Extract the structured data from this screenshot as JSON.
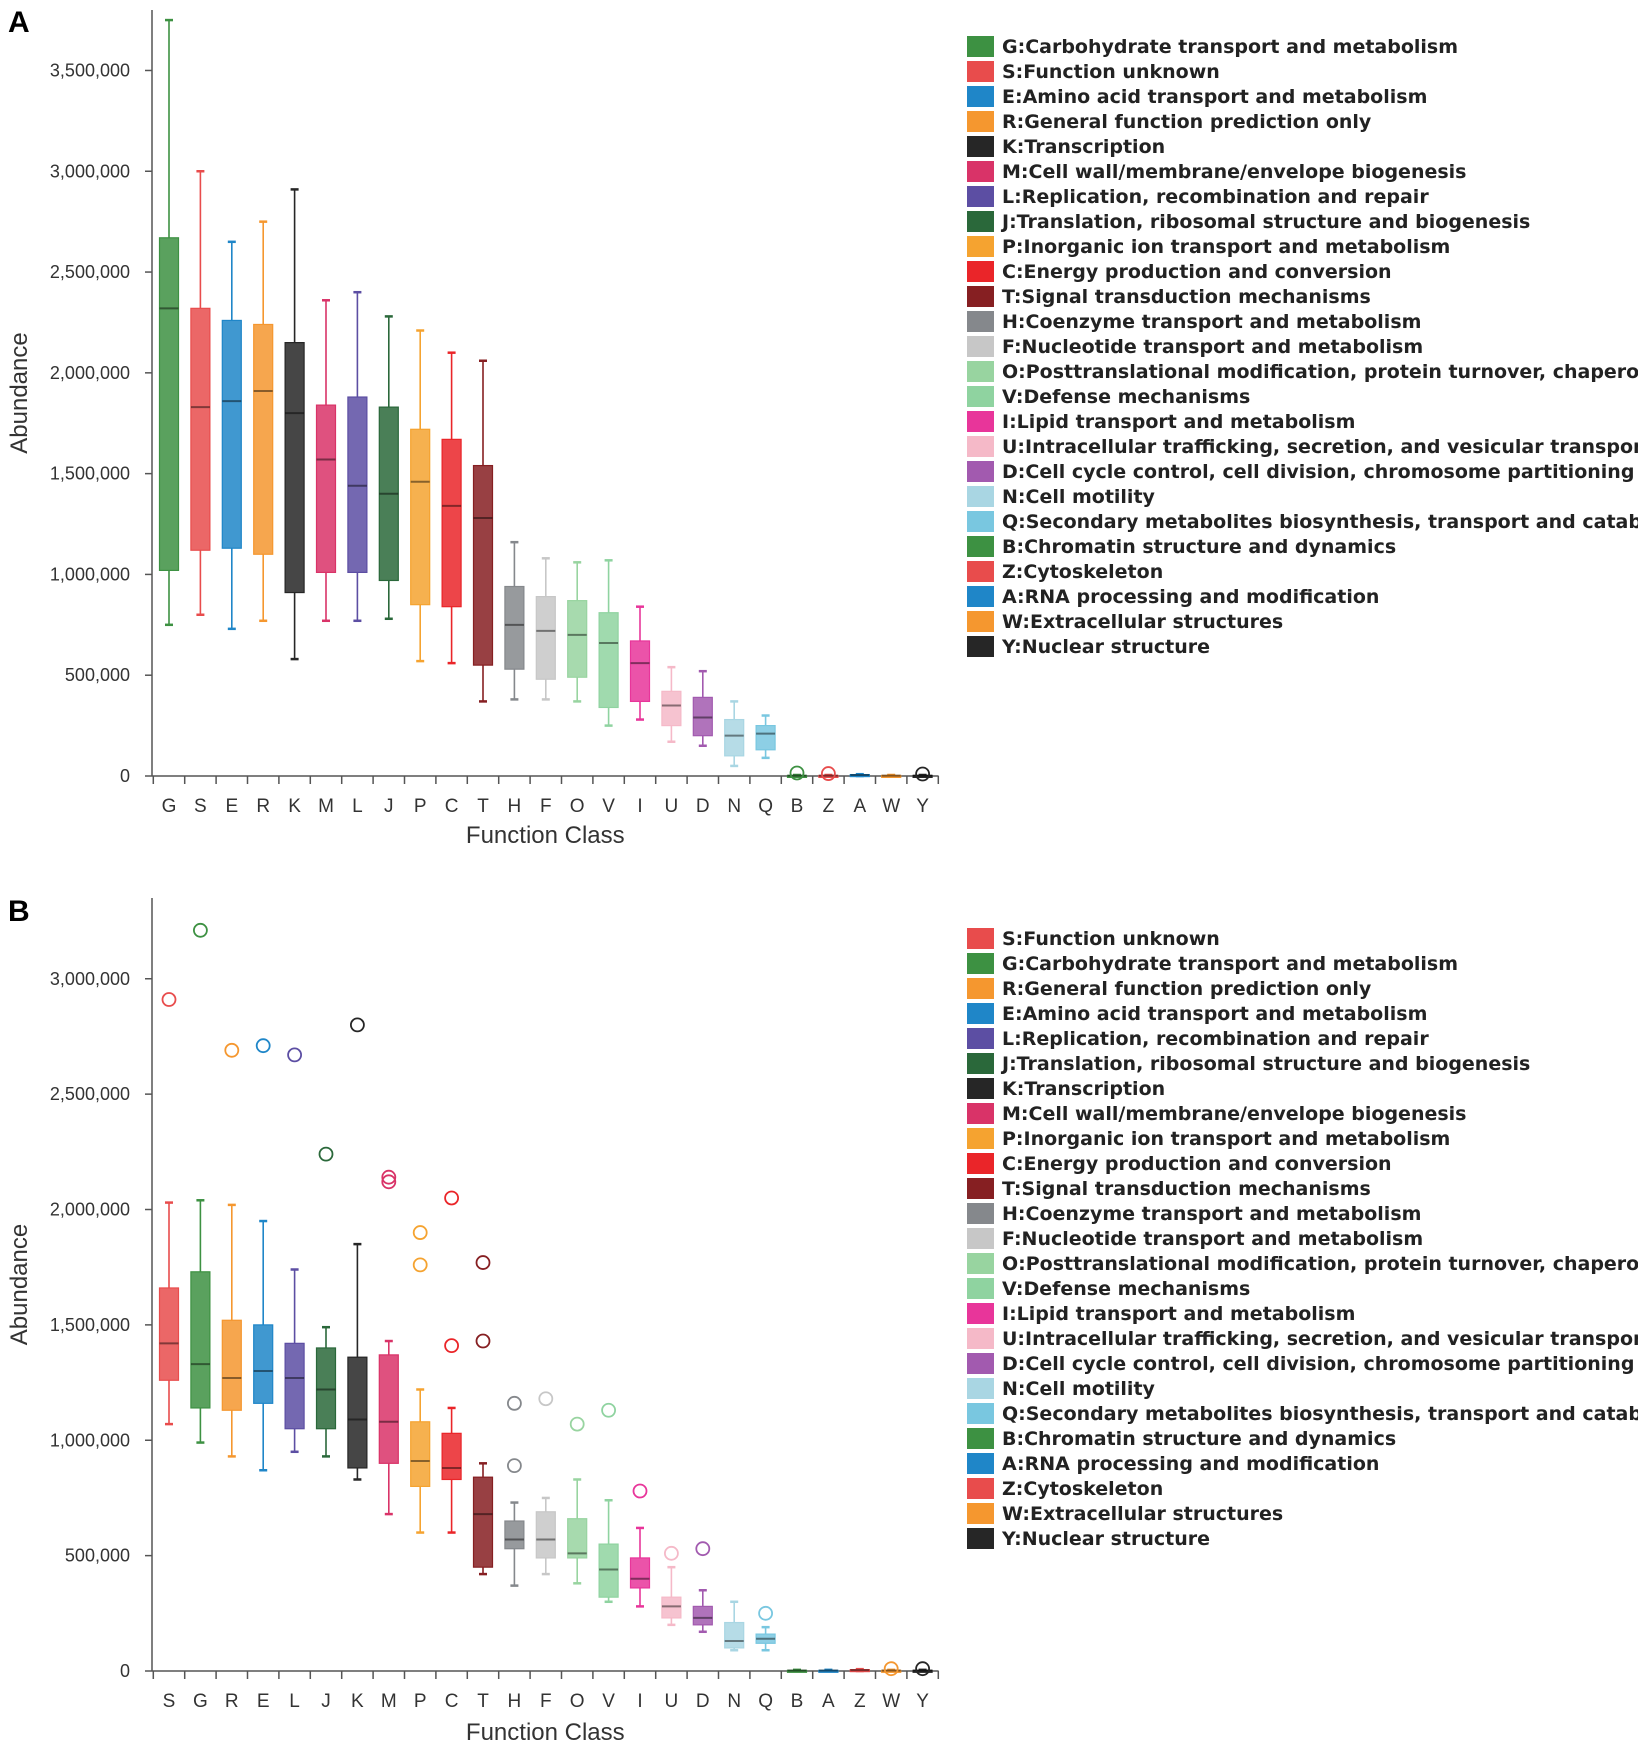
{
  "colors": {
    "G": "#3d9142",
    "S": "#e84c4c",
    "E": "#1f86c8",
    "R": "#f5972f",
    "K": "#262626",
    "M": "#d93368",
    "L": "#5c4ea3",
    "J": "#2a683a",
    "P": "#f5a330",
    "C": "#ea2529",
    "T": "#861f22",
    "H": "#85888c",
    "F": "#c7c7c7",
    "O": "#98d4a0",
    "V": "#8fd3a0",
    "I": "#e8359a",
    "U": "#f5b9c8",
    "D": "#a25aaf",
    "N": "#a9d6e3",
    "Q": "#79c7e0",
    "B": "#3d9142",
    "Z": "#e84c4c",
    "A": "#1f86c8",
    "W": "#f5972f",
    "Y": "#262626"
  },
  "chart_data": [
    {
      "panel": "A",
      "type": "box",
      "xlabel": "Function Class",
      "ylabel": "Abundance",
      "ylim": [
        0,
        3800000
      ],
      "yticks": [
        {
          "v": 0,
          "label": "0"
        },
        {
          "v": 500000,
          "label": "500,000"
        },
        {
          "v": 1000000,
          "label": "1,000,000"
        },
        {
          "v": 1500000,
          "label": "1,500,000"
        },
        {
          "v": 2000000,
          "label": "2,000,000"
        },
        {
          "v": 2500000,
          "label": "2,500,000"
        },
        {
          "v": 3000000,
          "label": "3,000,000"
        },
        {
          "v": 3500000,
          "label": "3,500,000"
        }
      ],
      "categories": [
        "G",
        "S",
        "E",
        "R",
        "K",
        "M",
        "L",
        "J",
        "P",
        "C",
        "T",
        "H",
        "F",
        "O",
        "V",
        "I",
        "U",
        "D",
        "N",
        "Q",
        "B",
        "Z",
        "A",
        "W",
        "Y"
      ],
      "boxes": [
        {
          "c": "G",
          "min": 750000,
          "q1": 1020000,
          "med": 2320000,
          "q3": 2670000,
          "max": 3750000
        },
        {
          "c": "S",
          "min": 800000,
          "q1": 1120000,
          "med": 1830000,
          "q3": 2320000,
          "max": 3000000
        },
        {
          "c": "E",
          "min": 730000,
          "q1": 1130000,
          "med": 1860000,
          "q3": 2260000,
          "max": 2650000
        },
        {
          "c": "R",
          "min": 770000,
          "q1": 1100000,
          "med": 1910000,
          "q3": 2240000,
          "max": 2750000
        },
        {
          "c": "K",
          "min": 580000,
          "q1": 910000,
          "med": 1800000,
          "q3": 2150000,
          "max": 2910000
        },
        {
          "c": "M",
          "min": 770000,
          "q1": 1010000,
          "med": 1570000,
          "q3": 1840000,
          "max": 2360000
        },
        {
          "c": "L",
          "min": 770000,
          "q1": 1010000,
          "med": 1440000,
          "q3": 1880000,
          "max": 2400000
        },
        {
          "c": "J",
          "min": 780000,
          "q1": 970000,
          "med": 1400000,
          "q3": 1830000,
          "max": 2280000
        },
        {
          "c": "P",
          "min": 570000,
          "q1": 850000,
          "med": 1460000,
          "q3": 1720000,
          "max": 2210000
        },
        {
          "c": "C",
          "min": 560000,
          "q1": 840000,
          "med": 1340000,
          "q3": 1670000,
          "max": 2100000
        },
        {
          "c": "T",
          "min": 370000,
          "q1": 550000,
          "med": 1280000,
          "q3": 1540000,
          "max": 2060000
        },
        {
          "c": "H",
          "min": 380000,
          "q1": 530000,
          "med": 750000,
          "q3": 940000,
          "max": 1160000
        },
        {
          "c": "F",
          "min": 380000,
          "q1": 480000,
          "med": 720000,
          "q3": 890000,
          "max": 1080000
        },
        {
          "c": "O",
          "min": 370000,
          "q1": 490000,
          "med": 700000,
          "q3": 870000,
          "max": 1060000
        },
        {
          "c": "V",
          "min": 250000,
          "q1": 340000,
          "med": 660000,
          "q3": 810000,
          "max": 1070000
        },
        {
          "c": "I",
          "min": 280000,
          "q1": 370000,
          "med": 560000,
          "q3": 670000,
          "max": 840000
        },
        {
          "c": "U",
          "min": 170000,
          "q1": 250000,
          "med": 350000,
          "q3": 420000,
          "max": 540000
        },
        {
          "c": "D",
          "min": 150000,
          "q1": 200000,
          "med": 290000,
          "q3": 390000,
          "max": 520000
        },
        {
          "c": "N",
          "min": 50000,
          "q1": 100000,
          "med": 200000,
          "q3": 280000,
          "max": 370000
        },
        {
          "c": "Q",
          "min": 90000,
          "q1": 130000,
          "med": 210000,
          "q3": 250000,
          "max": 300000
        },
        {
          "c": "B",
          "min": 0,
          "q1": 1000,
          "med": 2000,
          "q3": 3000,
          "max": 5000
        },
        {
          "c": "Z",
          "min": 0,
          "q1": 1000,
          "med": 2000,
          "q3": 3000,
          "max": 5000
        },
        {
          "c": "A",
          "min": 0,
          "q1": 3000,
          "med": 5000,
          "q3": 7000,
          "max": 9000
        },
        {
          "c": "W",
          "min": 0,
          "q1": 1000,
          "med": 2000,
          "q3": 3000,
          "max": 5000
        },
        {
          "c": "Y",
          "min": 0,
          "q1": 1000,
          "med": 2000,
          "q3": 3000,
          "max": 5000
        }
      ],
      "outliers": [
        {
          "c": "B",
          "v": 15000
        },
        {
          "c": "Z",
          "v": 12000
        },
        {
          "c": "Y",
          "v": 10000
        }
      ],
      "legend": [
        {
          "code": "G",
          "label": "G:Carbohydrate transport and metabolism"
        },
        {
          "code": "S",
          "label": "S:Function unknown"
        },
        {
          "code": "E",
          "label": "E:Amino acid transport and metabolism"
        },
        {
          "code": "R",
          "label": "R:General function prediction only"
        },
        {
          "code": "K",
          "label": "K:Transcription"
        },
        {
          "code": "M",
          "label": "M:Cell wall/membrane/envelope biogenesis"
        },
        {
          "code": "L",
          "label": "L:Replication, recombination and repair"
        },
        {
          "code": "J",
          "label": "J:Translation, ribosomal structure and biogenesis"
        },
        {
          "code": "P",
          "label": "P:Inorganic ion transport and metabolism"
        },
        {
          "code": "C",
          "label": "C:Energy production and conversion"
        },
        {
          "code": "T",
          "label": "T:Signal transduction mechanisms"
        },
        {
          "code": "H",
          "label": "H:Coenzyme transport and metabolism"
        },
        {
          "code": "F",
          "label": "F:Nucleotide transport and metabolism"
        },
        {
          "code": "O",
          "label": "O:Posttranslational modification, protein turnover, chaperones"
        },
        {
          "code": "V",
          "label": "V:Defense mechanisms"
        },
        {
          "code": "I",
          "label": "I:Lipid transport and metabolism"
        },
        {
          "code": "U",
          "label": "U:Intracellular trafficking, secretion, and vesicular transport"
        },
        {
          "code": "D",
          "label": "D:Cell cycle control, cell division, chromosome partitioning"
        },
        {
          "code": "N",
          "label": "N:Cell motility"
        },
        {
          "code": "Q",
          "label": "Q:Secondary metabolites biosynthesis, transport and catabolism"
        },
        {
          "code": "B",
          "label": "B:Chromatin structure and dynamics"
        },
        {
          "code": "Z",
          "label": "Z:Cytoskeleton"
        },
        {
          "code": "A",
          "label": "A:RNA processing and modification"
        },
        {
          "code": "W",
          "label": "W:Extracellular structures"
        },
        {
          "code": "Y",
          "label": "Y:Nuclear structure"
        }
      ]
    },
    {
      "panel": "B",
      "type": "box",
      "xlabel": "Function Class",
      "ylabel": "Abundance",
      "ylim": [
        0,
        3350000
      ],
      "yticks": [
        {
          "v": 0,
          "label": "0"
        },
        {
          "v": 500000,
          "label": "500,000"
        },
        {
          "v": 1000000,
          "label": "1,000,000"
        },
        {
          "v": 1500000,
          "label": "1,500,000"
        },
        {
          "v": 2000000,
          "label": "2,000,000"
        },
        {
          "v": 2500000,
          "label": "2,500,000"
        },
        {
          "v": 3000000,
          "label": "3,000,000"
        }
      ],
      "categories": [
        "S",
        "G",
        "R",
        "E",
        "L",
        "J",
        "K",
        "M",
        "P",
        "C",
        "T",
        "H",
        "F",
        "O",
        "V",
        "I",
        "U",
        "D",
        "N",
        "Q",
        "B",
        "A",
        "Z",
        "W",
        "Y"
      ],
      "boxes": [
        {
          "c": "S",
          "min": 1070000,
          "q1": 1260000,
          "med": 1420000,
          "q3": 1660000,
          "max": 2030000
        },
        {
          "c": "G",
          "min": 990000,
          "q1": 1140000,
          "med": 1330000,
          "q3": 1730000,
          "max": 2040000
        },
        {
          "c": "R",
          "min": 930000,
          "q1": 1130000,
          "med": 1270000,
          "q3": 1520000,
          "max": 2020000
        },
        {
          "c": "E",
          "min": 870000,
          "q1": 1160000,
          "med": 1300000,
          "q3": 1500000,
          "max": 1950000
        },
        {
          "c": "L",
          "min": 950000,
          "q1": 1050000,
          "med": 1270000,
          "q3": 1420000,
          "max": 1740000
        },
        {
          "c": "J",
          "min": 930000,
          "q1": 1050000,
          "med": 1220000,
          "q3": 1400000,
          "max": 1490000
        },
        {
          "c": "K",
          "min": 830000,
          "q1": 880000,
          "med": 1090000,
          "q3": 1360000,
          "max": 1850000
        },
        {
          "c": "M",
          "min": 680000,
          "q1": 900000,
          "med": 1080000,
          "q3": 1370000,
          "max": 1430000
        },
        {
          "c": "P",
          "min": 600000,
          "q1": 800000,
          "med": 910000,
          "q3": 1080000,
          "max": 1220000
        },
        {
          "c": "C",
          "min": 600000,
          "q1": 830000,
          "med": 880000,
          "q3": 1030000,
          "max": 1140000
        },
        {
          "c": "T",
          "min": 420000,
          "q1": 450000,
          "med": 680000,
          "q3": 840000,
          "max": 900000
        },
        {
          "c": "H",
          "min": 370000,
          "q1": 530000,
          "med": 570000,
          "q3": 650000,
          "max": 730000
        },
        {
          "c": "F",
          "min": 420000,
          "q1": 490000,
          "med": 570000,
          "q3": 690000,
          "max": 750000
        },
        {
          "c": "O",
          "min": 380000,
          "q1": 490000,
          "med": 510000,
          "q3": 660000,
          "max": 830000
        },
        {
          "c": "V",
          "min": 300000,
          "q1": 320000,
          "med": 440000,
          "q3": 550000,
          "max": 740000
        },
        {
          "c": "I",
          "min": 280000,
          "q1": 360000,
          "med": 400000,
          "q3": 490000,
          "max": 620000
        },
        {
          "c": "U",
          "min": 200000,
          "q1": 230000,
          "med": 280000,
          "q3": 320000,
          "max": 450000
        },
        {
          "c": "D",
          "min": 170000,
          "q1": 200000,
          "med": 230000,
          "q3": 280000,
          "max": 350000
        },
        {
          "c": "N",
          "min": 90000,
          "q1": 100000,
          "med": 130000,
          "q3": 210000,
          "max": 300000
        },
        {
          "c": "Q",
          "min": 90000,
          "q1": 120000,
          "med": 140000,
          "q3": 160000,
          "max": 190000
        },
        {
          "c": "B",
          "min": 0,
          "q1": 1000,
          "med": 2000,
          "q3": 3000,
          "max": 5000
        },
        {
          "c": "A",
          "min": 0,
          "q1": 1000,
          "med": 2000,
          "q3": 3000,
          "max": 5000
        },
        {
          "c": "Z",
          "min": 0,
          "q1": 2000,
          "med": 4000,
          "q3": 6000,
          "max": 8000
        },
        {
          "c": "W",
          "min": 0,
          "q1": 1000,
          "med": 2000,
          "q3": 3000,
          "max": 5000
        },
        {
          "c": "Y",
          "min": 0,
          "q1": 1000,
          "med": 2000,
          "q3": 3000,
          "max": 5000
        }
      ],
      "outliers": [
        {
          "c": "S",
          "v": 2910000
        },
        {
          "c": "G",
          "v": 3210000
        },
        {
          "c": "R",
          "v": 2690000
        },
        {
          "c": "E",
          "v": 2710000
        },
        {
          "c": "L",
          "v": 2670000
        },
        {
          "c": "J",
          "v": 2240000
        },
        {
          "c": "K",
          "v": 2800000
        },
        {
          "c": "M",
          "v": 2140000
        },
        {
          "c": "M",
          "v": 2120000
        },
        {
          "c": "P",
          "v": 1900000
        },
        {
          "c": "P",
          "v": 1760000
        },
        {
          "c": "C",
          "v": 2050000
        },
        {
          "c": "C",
          "v": 1410000
        },
        {
          "c": "T",
          "v": 1770000
        },
        {
          "c": "T",
          "v": 1430000
        },
        {
          "c": "H",
          "v": 1160000
        },
        {
          "c": "H",
          "v": 890000
        },
        {
          "c": "F",
          "v": 1180000
        },
        {
          "c": "O",
          "v": 1070000
        },
        {
          "c": "V",
          "v": 1130000
        },
        {
          "c": "I",
          "v": 780000
        },
        {
          "c": "U",
          "v": 510000
        },
        {
          "c": "D",
          "v": 530000
        },
        {
          "c": "Q",
          "v": 250000
        },
        {
          "c": "W",
          "v": 10000
        },
        {
          "c": "Y",
          "v": 10000
        }
      ],
      "legend": [
        {
          "code": "S",
          "label": "S:Function unknown"
        },
        {
          "code": "G",
          "label": "G:Carbohydrate transport and metabolism"
        },
        {
          "code": "R",
          "label": "R:General function prediction only"
        },
        {
          "code": "E",
          "label": "E:Amino acid transport and metabolism"
        },
        {
          "code": "L",
          "label": "L:Replication, recombination and repair"
        },
        {
          "code": "J",
          "label": "J:Translation, ribosomal structure and biogenesis"
        },
        {
          "code": "K",
          "label": "K:Transcription"
        },
        {
          "code": "M",
          "label": "M:Cell wall/membrane/envelope biogenesis"
        },
        {
          "code": "P",
          "label": "P:Inorganic ion transport and metabolism"
        },
        {
          "code": "C",
          "label": "C:Energy production and conversion"
        },
        {
          "code": "T",
          "label": "T:Signal transduction mechanisms"
        },
        {
          "code": "H",
          "label": "H:Coenzyme transport and metabolism"
        },
        {
          "code": "F",
          "label": "F:Nucleotide transport and metabolism"
        },
        {
          "code": "O",
          "label": "O:Posttranslational modification, protein turnover, chaperones"
        },
        {
          "code": "V",
          "label": "V:Defense mechanisms"
        },
        {
          "code": "I",
          "label": "I:Lipid transport and metabolism"
        },
        {
          "code": "U",
          "label": "U:Intracellular trafficking, secretion, and vesicular transport"
        },
        {
          "code": "D",
          "label": "D:Cell cycle control, cell division, chromosome partitioning"
        },
        {
          "code": "N",
          "label": "N:Cell motility"
        },
        {
          "code": "Q",
          "label": "Q:Secondary metabolites biosynthesis, transport and catabolism"
        },
        {
          "code": "B",
          "label": "B:Chromatin structure and dynamics"
        },
        {
          "code": "A",
          "label": "A:RNA processing and modification"
        },
        {
          "code": "Z",
          "label": "Z:Cytoskeleton"
        },
        {
          "code": "W",
          "label": "W:Extracellular structures"
        },
        {
          "code": "Y",
          "label": "Y:Nuclear structure"
        }
      ]
    }
  ]
}
